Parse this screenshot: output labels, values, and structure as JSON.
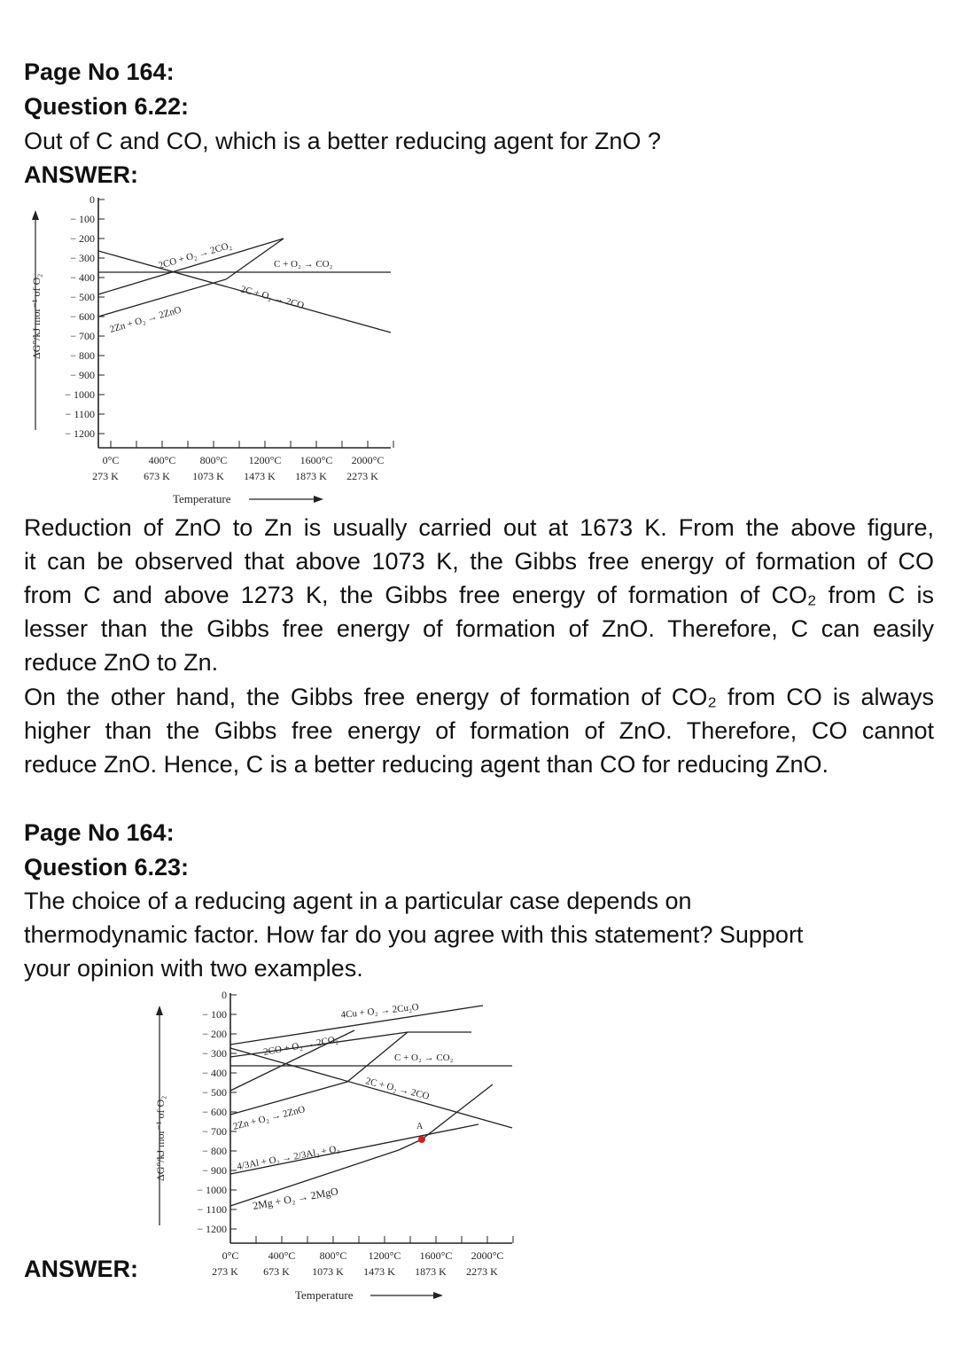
{
  "q22": {
    "page": "Page No 164:",
    "question": "Question 6.22:",
    "text": "Out of C and CO, which is a better reducing agent for ZnO ?",
    "answer_label": "ANSWER:",
    "para1_lines": [
      "Reduction of ZnO to Zn is usually carried out at 1673 K. From the above figure,",
      "it can be observed that above 1073 K, the Gibbs free energy of formation of CO",
      "from C and above 1273 K, the Gibbs free energy of formation of CO₂ from C is",
      "lesser than the Gibbs free energy of formation of ZnO. Therefore, C can easily",
      "reduce ZnO to Zn."
    ],
    "para2_lines": [
      "On the other hand, the Gibbs free energy of formation of CO₂ from CO is always",
      "higher than the Gibbs free energy of formation of ZnO. Therefore, CO cannot",
      "reduce ZnO. Hence, C is a better reducing agent than CO for reducing ZnO."
    ]
  },
  "q23": {
    "page": "Page No 164:",
    "question": "Question 6.23:",
    "text_lines": [
      "The choice of a reducing agent in a particular case depends on",
      "thermodynamic factor. How far do you agree with this statement? Support",
      "your opinion with two examples."
    ],
    "answer_label": "ANSWER:"
  },
  "fig1": {
    "y_axis_label": "ΔG°/kJ mor⁻¹ of O₂",
    "y_ticks": [
      "0",
      "− 100",
      "− 200",
      "− 300",
      "− 400",
      "− 500",
      "− 600",
      "− 700",
      "− 800",
      "− 900",
      "− 1000",
      "− 1100",
      "− 1200"
    ],
    "x_ticks_c": [
      "0°C",
      "400°C",
      "800°C",
      "1200°C",
      "1600°C",
      "2000°C"
    ],
    "x_ticks_k": [
      "273 K",
      "673 K",
      "1073 K",
      "1473 K",
      "1873 K",
      "2273 K"
    ],
    "x_axis_label": "Temperature",
    "line_labels": {
      "co_co2": "2CO + O₂ → 2CO₂",
      "c_co2": "C + O₂ → CO₂",
      "c_co": "2C + O₂ → 2CO",
      "zn_zno": "2Zn + O₂ → 2ZnO"
    }
  },
  "fig2": {
    "y_axis_label": "ΔG°/kJ mor⁻¹ of O₂",
    "y_ticks": [
      "0",
      "− 100",
      "− 200",
      "− 300",
      "− 400",
      "− 500",
      "− 600",
      "− 700",
      "− 800",
      "− 900",
      "− 1000",
      "− 1100",
      "− 1200"
    ],
    "x_ticks_c": [
      "0°C",
      "400°C",
      "800°C",
      "1200°C",
      "1600°C",
      "2000°C"
    ],
    "x_ticks_k": [
      "273 K",
      "673 K",
      "1073 K",
      "1473 K",
      "1873 K",
      "2273 K"
    ],
    "x_axis_label": "Temperature",
    "line_labels": {
      "cu_cu2o": "4Cu + O₂ → 2Cu₂O",
      "co_co2": "2CO + O₂ → 2CO₂",
      "c_co2": "C + O₂ → CO₂",
      "c_co": "2C + O₂ → 2CO",
      "zn_zno": "2Zn + O₂ → 2ZnO",
      "al": "4/3Al + O₂ → 2/3Al₂ + O₃",
      "mg": "2Mg + O₂ → 2MgO",
      "point_a": "A"
    }
  }
}
